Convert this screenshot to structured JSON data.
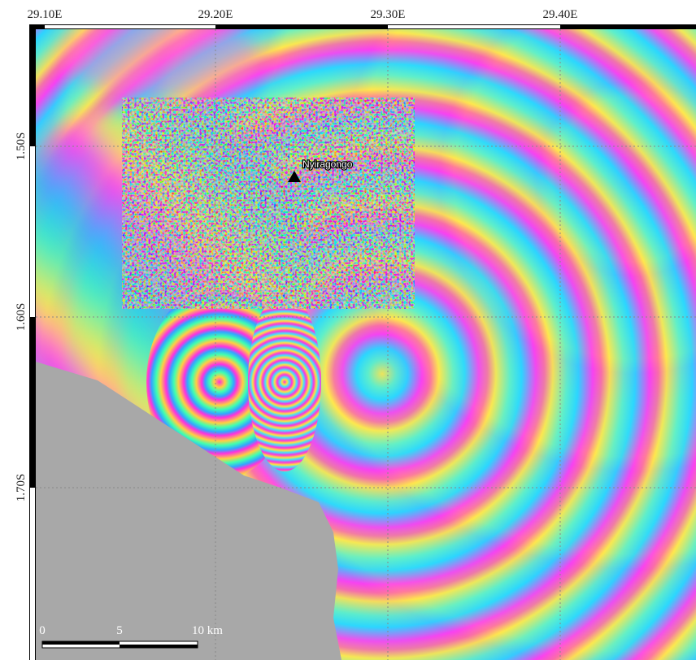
{
  "map": {
    "x_axis_labels": [
      "29.10E",
      "29.20E",
      "29.30E",
      "29.40E"
    ],
    "y_axis_labels": [
      "1.50S",
      "1.60S",
      "1.70S"
    ],
    "volcano_label": "Nyiragongo",
    "scale_bar_labels": [
      "0",
      "5",
      "10 km"
    ]
  }
}
